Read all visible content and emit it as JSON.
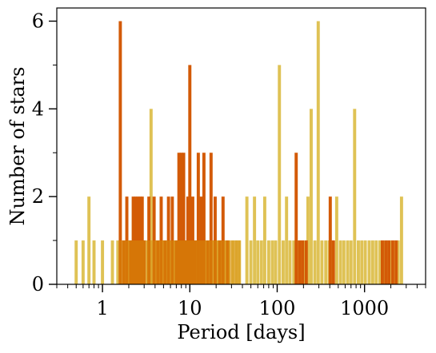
{
  "chart_data": {
    "type": "bar",
    "xlabel": "Period [days]",
    "ylabel": "Number of stars",
    "x_scale": "log",
    "xlim": [
      0.3,
      5000
    ],
    "ylim": [
      0,
      6.3
    ],
    "xticks": [
      1,
      10,
      100,
      1000
    ],
    "xtick_labels": [
      "1",
      "10",
      "100",
      "1000"
    ],
    "yticks": [
      0,
      2,
      4,
      6
    ],
    "ytick_labels": [
      "0",
      "2",
      "4",
      "6"
    ],
    "grid": false,
    "legend": "none",
    "colors": {
      "series_a": "#dfc255",
      "series_b": "#d35a06",
      "overlap": "#d88e0a"
    },
    "series": [
      {
        "color": "#dfc255",
        "bins": [
          [
            0.5,
            1
          ],
          [
            0.6,
            1
          ],
          [
            0.7,
            2
          ],
          [
            0.8,
            1
          ],
          [
            1.0,
            1
          ],
          [
            1.3,
            1
          ],
          [
            1.5,
            1
          ],
          [
            2.0,
            1
          ],
          [
            2.3,
            1
          ],
          [
            2.6,
            1
          ],
          [
            3.0,
            1
          ],
          [
            3.3,
            1
          ],
          [
            3.6,
            4
          ],
          [
            4.0,
            1
          ],
          [
            4.5,
            1
          ],
          [
            5.0,
            1
          ],
          [
            5.5,
            1
          ],
          [
            6.0,
            1
          ],
          [
            6.5,
            1
          ],
          [
            7.0,
            1
          ],
          [
            8.0,
            1
          ],
          [
            9.0,
            1
          ],
          [
            10.5,
            1
          ],
          [
            12.0,
            1
          ],
          [
            13.0,
            1
          ],
          [
            14.0,
            1
          ],
          [
            15.5,
            1
          ],
          [
            17.0,
            1
          ],
          [
            19.0,
            1
          ],
          [
            21.0,
            1
          ],
          [
            23.0,
            1
          ],
          [
            25.0,
            1
          ],
          [
            28.0,
            1
          ],
          [
            31.0,
            1
          ],
          [
            34.0,
            1
          ],
          [
            37.0,
            1
          ],
          [
            45.0,
            2
          ],
          [
            50.0,
            1
          ],
          [
            55.0,
            2
          ],
          [
            60.0,
            1
          ],
          [
            66.0,
            1
          ],
          [
            72.0,
            2
          ],
          [
            80.0,
            1
          ],
          [
            88.0,
            1
          ],
          [
            96.0,
            1
          ],
          [
            106.0,
            5
          ],
          [
            117.0,
            1
          ],
          [
            128.0,
            2
          ],
          [
            140.0,
            1
          ],
          [
            155.0,
            1
          ],
          [
            170.0,
            1
          ],
          [
            185.0,
            1
          ],
          [
            205.0,
            1
          ],
          [
            225.0,
            2
          ],
          [
            245.0,
            4
          ],
          [
            270.0,
            1
          ],
          [
            295.0,
            6
          ],
          [
            325.0,
            1
          ],
          [
            360.0,
            1
          ],
          [
            395.0,
            1
          ],
          [
            435.0,
            1
          ],
          [
            480.0,
            2
          ],
          [
            530.0,
            1
          ],
          [
            580.0,
            1
          ],
          [
            640.0,
            1
          ],
          [
            700.0,
            1
          ],
          [
            770.0,
            4
          ],
          [
            850.0,
            1
          ],
          [
            930.0,
            1
          ],
          [
            1020.0,
            1
          ],
          [
            1130.0,
            1
          ],
          [
            1240.0,
            1
          ],
          [
            1360.0,
            1
          ],
          [
            1500.0,
            1
          ],
          [
            1650.0,
            1
          ],
          [
            1820.0,
            1
          ],
          [
            2000.0,
            1
          ],
          [
            2200.0,
            1
          ],
          [
            2420.0,
            1
          ],
          [
            2650.0,
            2
          ]
        ]
      },
      {
        "color": "#d35a06",
        "bins": [
          [
            1.6,
            6
          ],
          [
            1.75,
            1
          ],
          [
            1.9,
            2
          ],
          [
            2.1,
            1
          ],
          [
            2.25,
            2
          ],
          [
            2.4,
            2
          ],
          [
            2.55,
            2
          ],
          [
            2.7,
            2
          ],
          [
            2.85,
            2
          ],
          [
            3.0,
            1
          ],
          [
            3.4,
            2
          ],
          [
            3.9,
            2
          ],
          [
            4.3,
            1
          ],
          [
            4.7,
            2
          ],
          [
            5.2,
            1
          ],
          [
            5.7,
            2
          ],
          [
            6.3,
            2
          ],
          [
            7.0,
            1
          ],
          [
            7.5,
            3
          ],
          [
            8.0,
            3
          ],
          [
            8.5,
            3
          ],
          [
            9.0,
            1
          ],
          [
            9.5,
            2
          ],
          [
            10.0,
            5
          ],
          [
            10.8,
            2
          ],
          [
            11.5,
            1
          ],
          [
            12.5,
            3
          ],
          [
            13.5,
            2
          ],
          [
            14.5,
            3
          ],
          [
            16.0,
            1
          ],
          [
            17.5,
            3
          ],
          [
            19.5,
            2
          ],
          [
            22.0,
            1
          ],
          [
            24.0,
            2
          ],
          [
            27.0,
            1
          ],
          [
            165.0,
            3
          ],
          [
            180.0,
            1
          ],
          [
            195.0,
            1
          ],
          [
            215.0,
            1
          ],
          [
            405.0,
            2
          ],
          [
            440.0,
            1
          ],
          [
            1600.0,
            1
          ],
          [
            1750.0,
            1
          ],
          [
            1900.0,
            1
          ],
          [
            2100.0,
            1
          ],
          [
            2300.0,
            1
          ]
        ]
      }
    ]
  }
}
